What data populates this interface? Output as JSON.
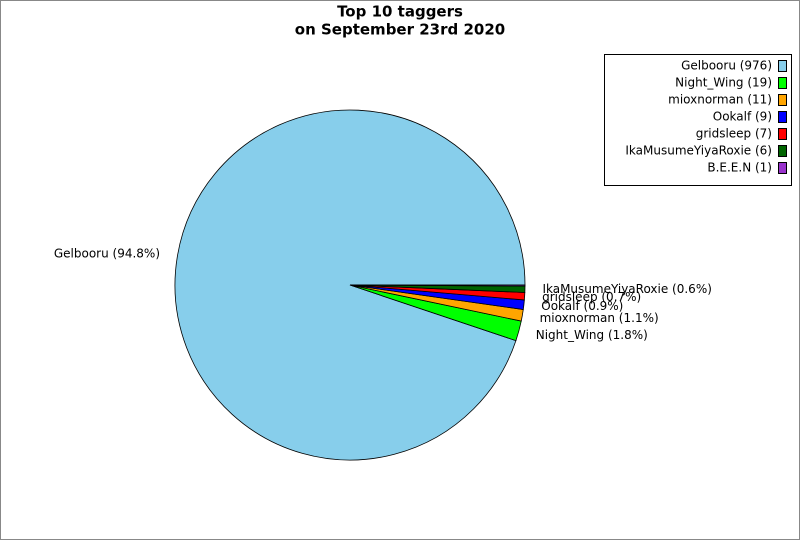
{
  "chart_data": {
    "type": "pie",
    "title": [
      "Top 10 taggers",
      "on September 23rd 2020"
    ],
    "legend_labels": [
      "Gelbooru (976)",
      "Night_Wing (19)",
      "mioxnorman (11)",
      "Ookalf (9)",
      "gridsleep (7)",
      "IkaMusumeYiyaRoxie (6)",
      "B.E.E.N (1)"
    ],
    "values": [
      976,
      19,
      11,
      9,
      7,
      6,
      1
    ],
    "value_labels": [
      "Gelbooru (94.8%)",
      "Night_Wing (1.8%)",
      "mioxnorman (1.1%)",
      "Ookalf (0.9%)",
      "gridsleep (0.7%)",
      "IkaMusumeYiyaRoxie (0.6%)",
      null
    ],
    "colors": [
      "#87ceeb",
      "#00ff00",
      "#ffa500",
      "#0000ff",
      "#ff0000",
      "#006400",
      "#9932cc"
    ],
    "legend": "upper right"
  }
}
